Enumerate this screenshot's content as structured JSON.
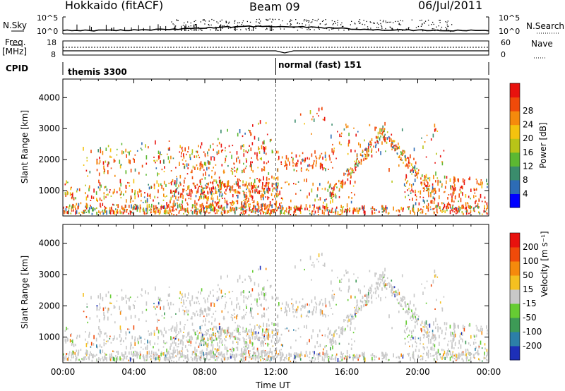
{
  "header": {
    "title": "Hokkaido (fitACF)",
    "beam": "Beam 09",
    "date": "06/Jul/2011"
  },
  "top_panels": {
    "nsky_label": "N.Sky",
    "nsky_ticks": [
      "10^5",
      "10^0"
    ],
    "nsearch_label": "N.Search",
    "nsearch_ticks": [
      "10^5",
      "10^0"
    ],
    "freq_label_1": "Freq.",
    "freq_label_2": "[MHz]",
    "freq_ticks": [
      "18",
      "8"
    ],
    "nave_label": "Nave",
    "nave_ticks": [
      "60",
      "0"
    ],
    "cpid_label": "CPID",
    "cpid_segments": [
      {
        "label": "themis 3300",
        "start_hour": 0
      },
      {
        "label": "normal (fast) 151",
        "start_hour": 12
      }
    ]
  },
  "chart_data": [
    {
      "type": "heatmap",
      "name": "power-panel",
      "ylabel": "Slant Range [km]",
      "yticks": [
        "1000",
        "2000",
        "3000",
        "4000"
      ],
      "ylim": [
        180,
        4600
      ],
      "xlim": [
        0,
        24
      ],
      "colorbar_label": "Power [dB]",
      "colorbar_ticks": [
        "4",
        "8",
        "12",
        "16",
        "20",
        "24",
        "28"
      ],
      "colorbar_colors": [
        "#0000ff",
        "#2d6cb5",
        "#3a8c6c",
        "#5cb832",
        "#b8c418",
        "#f4c20e",
        "#f58a0c",
        "#f04a0a",
        "#e8120e"
      ]
    },
    {
      "type": "heatmap",
      "name": "velocity-panel",
      "ylabel": "Slant Range [km]",
      "yticks": [
        "1000",
        "2000",
        "3000",
        "4000"
      ],
      "ylim": [
        180,
        4600
      ],
      "xlim": [
        0,
        24
      ],
      "xlabel": "Time UT",
      "xticks": [
        "00:00",
        "04:00",
        "08:00",
        "12:00",
        "16:00",
        "20:00",
        "00:00"
      ],
      "colorbar_label": "Velocity [m s⁻¹]",
      "colorbar_ticks": [
        "200",
        "100",
        "50",
        "15",
        "-15",
        "-50",
        "-100",
        "-200"
      ],
      "colorbar_colors": [
        "#1d2fb8",
        "#2c7fa8",
        "#3d9a56",
        "#66cc33",
        "#c8c8c8",
        "#f4c020",
        "#f58a0c",
        "#f04a0a",
        "#e8120e"
      ]
    }
  ]
}
